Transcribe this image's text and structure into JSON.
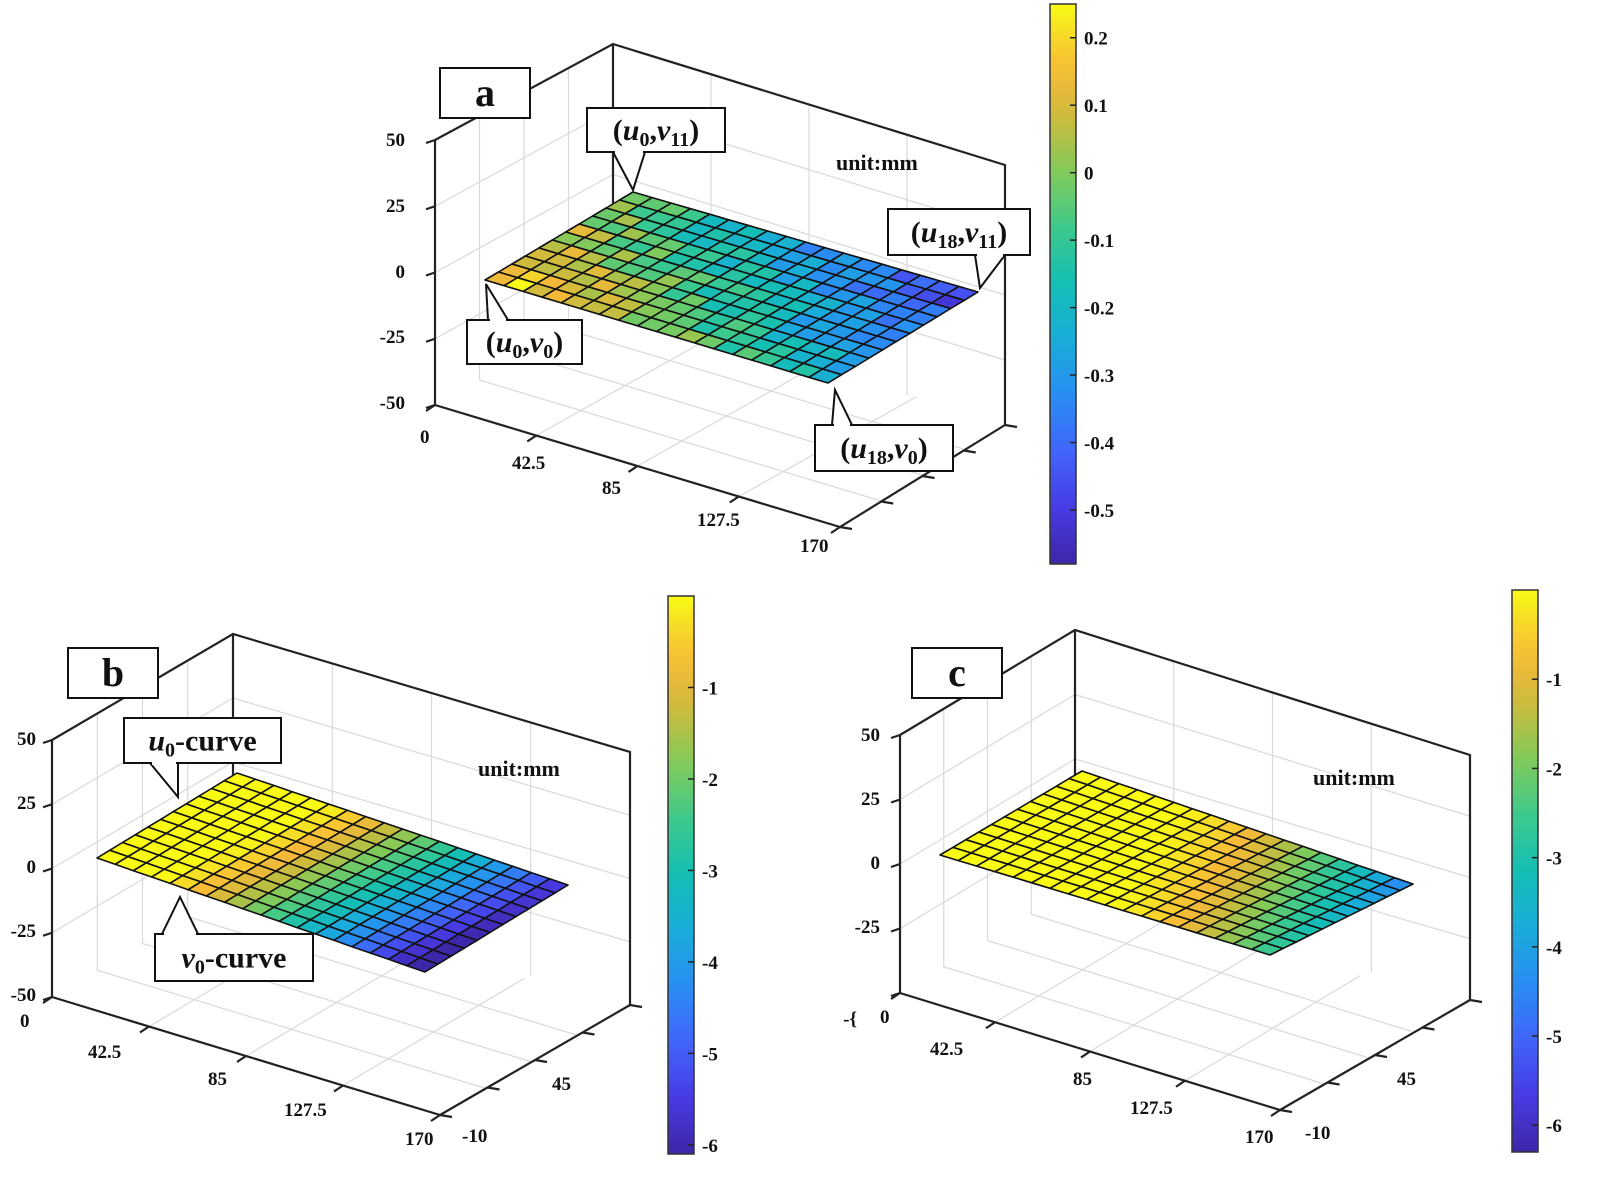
{
  "figure": {
    "panels": [
      {
        "id": "a",
        "label": "a",
        "unit_label": "unit:mm"
      },
      {
        "id": "b",
        "label": "b",
        "unit_label": "unit:mm"
      },
      {
        "id": "c",
        "label": "c",
        "unit_label": "unit:mm"
      }
    ]
  },
  "chart_data": [
    {
      "type": "surface",
      "panel": "a",
      "title": "a",
      "annotation": "unit:mm",
      "x_ticks": [
        "0",
        "42.5",
        "85",
        "127.5",
        "170"
      ],
      "y_ticks": [],
      "z_ticks": [
        "50",
        "25",
        "0",
        "-25",
        "-50"
      ],
      "zlim": [
        -50,
        50
      ],
      "xlim": [
        0,
        170
      ],
      "grid": {
        "u_cells": 18,
        "v_cells": 11,
        "u_nodes": "u0..u18",
        "v_nodes": "v0..v11"
      },
      "surface_z": 0,
      "colorbar": {
        "ticks": [
          "0.2",
          "0.1",
          "0",
          "-0.1",
          "-0.2",
          "-0.3",
          "-0.4",
          "-0.5"
        ],
        "range": [
          -0.58,
          0.25
        ],
        "colormap": "parula"
      },
      "color_trend": "deviation ~0.2 near (u0,v0) (yellow/orange), decreasing to ~-0.5 near (u18,v11) (blue/indigo), with noise",
      "callouts": [
        {
          "text_main": "u",
          "sub1": "0",
          "text_mid": "v",
          "sub2": "11",
          "at": "(u0,v11)"
        },
        {
          "text_main": "u",
          "sub1": "18",
          "text_mid": "v",
          "sub2": "11",
          "at": "(u18,v11)"
        },
        {
          "text_main": "u",
          "sub1": "0",
          "text_mid": "v",
          "sub2": "0",
          "at": "(u0,v0)"
        },
        {
          "text_main": "u",
          "sub1": "18",
          "text_mid": "v",
          "sub2": "0",
          "at": "(u18,v0)"
        }
      ]
    },
    {
      "type": "surface",
      "panel": "b",
      "title": "b",
      "annotation": "unit:mm",
      "x_ticks": [
        "0",
        "42.5",
        "85",
        "127.5",
        "170"
      ],
      "y_ticks": [
        "-10",
        "45"
      ],
      "z_ticks": [
        "50",
        "25",
        "0",
        "-25",
        "-50"
      ],
      "zlim": [
        -50,
        50
      ],
      "xlim": [
        0,
        170
      ],
      "grid": {
        "u_cells": 18,
        "v_cells": 11
      },
      "surface_z": 0,
      "colorbar": {
        "ticks": [
          "-1",
          "-2",
          "-3",
          "-4",
          "-5",
          "-6"
        ],
        "range": [
          -6.1,
          0.0
        ],
        "colormap": "parula"
      },
      "color_trend": "~0 (yellow) at u0, decreasing smoothly to ~-5.8 (blue) at u18,v0",
      "callouts": [
        {
          "text_main": "u",
          "sub1": "0",
          "text_rest": "-curve"
        },
        {
          "text_main": "v",
          "sub1": "0",
          "text_rest": "-curve"
        }
      ]
    },
    {
      "type": "surface",
      "panel": "c",
      "title": "c",
      "annotation": "unit:mm",
      "x_ticks": [
        "0",
        "42.5",
        "85",
        "127.5",
        "170"
      ],
      "y_ticks": [
        "-10",
        "45"
      ],
      "z_ticks": [
        "50",
        "25",
        "0",
        "-25",
        "-{"
      ],
      "zlim": [
        -50,
        50
      ],
      "xlim": [
        0,
        170
      ],
      "grid": {
        "u_cells": 18,
        "v_cells": 11
      },
      "surface_z": 0,
      "colorbar": {
        "ticks": [
          "-1",
          "-2",
          "-3",
          "-4",
          "-5",
          "-6"
        ],
        "range": [
          -6.3,
          0.0
        ],
        "colormap": "parula"
      },
      "color_trend": "~0 (yellow) over most of the surface, decreasing to ~-4.5 (blue) at u18,v11"
    }
  ]
}
